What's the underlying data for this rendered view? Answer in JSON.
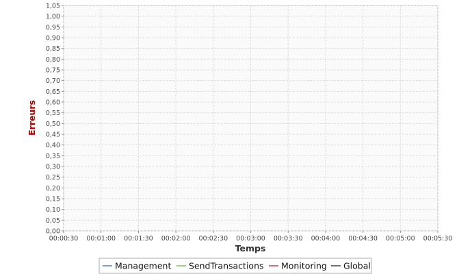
{
  "chart_data": {
    "type": "line",
    "xlabel": "Temps",
    "ylabel": "Erreurs",
    "x_ticks": [
      "00:00:30",
      "00:01:00",
      "00:01:30",
      "00:02:00",
      "00:02:30",
      "00:03:00",
      "00:03:30",
      "00:04:00",
      "00:04:30",
      "00:05:00",
      "00:05:30"
    ],
    "xlim": [
      "00:00:30",
      "00:05:30"
    ],
    "y_ticks": [
      "0,00",
      "0,05",
      "0,10",
      "0,15",
      "0,20",
      "0,25",
      "0,30",
      "0,35",
      "0,40",
      "0,45",
      "0,50",
      "0,55",
      "0,60",
      "0,65",
      "0,70",
      "0,75",
      "0,80",
      "0,85",
      "0,90",
      "0,95",
      "1,00",
      "1,05"
    ],
    "ylim": [
      0,
      1.05
    ],
    "grid": true,
    "legend_position": "bottom-center",
    "series": [
      {
        "name": "Management",
        "color": "#1f5fb4",
        "points": []
      },
      {
        "name": "SendTransactions",
        "color": "#5cad2e",
        "points": []
      },
      {
        "name": "Monitoring",
        "color": "#9b1c2a",
        "points": []
      },
      {
        "name": "Global",
        "color": "#111111",
        "points": []
      }
    ],
    "colors": {
      "ylabel": "#aa0000",
      "xlabel": "#333333",
      "grid": "#dcdcdc",
      "plot_background": "#fafafa",
      "plot_border": "#b0b0b0"
    }
  }
}
